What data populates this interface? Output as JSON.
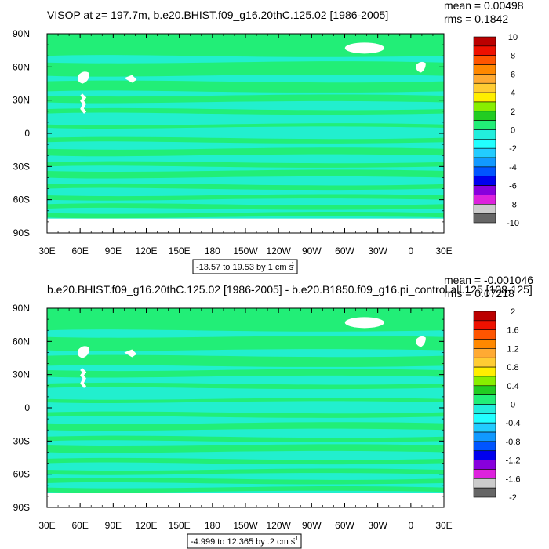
{
  "panels": [
    {
      "title": "VISOP at z= 197.7m, b.e20.BHIST.f09_g16.20thC.125.02 [1986-2005]",
      "mean_label": "mean = 0.00498",
      "rms_label": "rms = 0.1842",
      "range_label": "-13.57 to 19.53 by 1 cm s",
      "range_exp": "-1",
      "colorbar_labels": [
        "10",
        "8",
        "6",
        "4",
        "2",
        "0",
        "-2",
        "-4",
        "-6",
        "-8",
        "-10"
      ]
    },
    {
      "title": "b.e20.BHIST.f09_g16.20thC.125.02 [1986-2005] - b.e20.B1850.f09_g16.pi_control.all.125 [108-125]",
      "mean_label": "mean = -0.001046",
      "rms_label": "rms = 0.07218",
      "range_label": "-4.999 to 12.365 by .2 cm s",
      "range_exp": "-1",
      "colorbar_labels": [
        "2",
        "1.6",
        "1.2",
        "0.8",
        "0.4",
        "0",
        "-0.4",
        "-0.8",
        "-1.2",
        "-1.6",
        "-2"
      ]
    }
  ],
  "axes": {
    "x_ticks": [
      "30E",
      "60E",
      "90E",
      "120E",
      "150E",
      "180",
      "150W",
      "120W",
      "90W",
      "60W",
      "30W",
      "0",
      "30E"
    ],
    "y_ticks": [
      "90N",
      "60N",
      "30N",
      "0",
      "30S",
      "60S",
      "90S"
    ]
  },
  "colors": {
    "ocean_main": "#22ee77",
    "ocean_alt": "#22eedd",
    "land": "#ffffff",
    "colorbar": [
      "#bb0000",
      "#ee1100",
      "#ff5500",
      "#ff8800",
      "#ffaa33",
      "#ffcc33",
      "#ffee00",
      "#88ee00",
      "#22cc22",
      "#22ee77",
      "#22eedd",
      "#22ffff",
      "#22ccff",
      "#1199ff",
      "#0055ff",
      "#0000ee",
      "#8800dd",
      "#dd22dd",
      "#cccccc",
      "#666666"
    ]
  },
  "chart_data": [
    {
      "type": "heatmap",
      "title": "VISOP at z= 197.7m, b.e20.BHIST.f09_g16.20thC.125.02 [1986-2005]",
      "xlim": [
        30,
        390
      ],
      "ylim": [
        -90,
        90
      ],
      "contour_levels": [
        -10,
        -9,
        -8,
        -7,
        -6,
        -5,
        -4,
        -3,
        -2,
        -1,
        0,
        1,
        2,
        3,
        4,
        5,
        6,
        7,
        8,
        9,
        10
      ],
      "stats": {
        "mean": 0.00498,
        "rms": 0.1842,
        "min": -13.57,
        "max": 19.53,
        "interval": 1
      },
      "units": "cm s-1"
    },
    {
      "type": "heatmap",
      "title": "b.e20.BHIST.f09_g16.20thC.125.02 [1986-2005] - b.e20.B1850.f09_g16.pi_control.all.125 [108-125]",
      "xlim": [
        30,
        390
      ],
      "ylim": [
        -90,
        90
      ],
      "contour_levels": [
        -2,
        -1.8,
        -1.6,
        -1.4,
        -1.2,
        -1,
        -0.8,
        -0.6,
        -0.4,
        -0.2,
        0,
        0.2,
        0.4,
        0.6,
        0.8,
        1,
        1.2,
        1.4,
        1.6,
        1.8,
        2
      ],
      "stats": {
        "mean": -0.001046,
        "rms": 0.07218,
        "min": -4.999,
        "max": 12.365,
        "interval": 0.2
      },
      "units": "cm s-1"
    }
  ]
}
